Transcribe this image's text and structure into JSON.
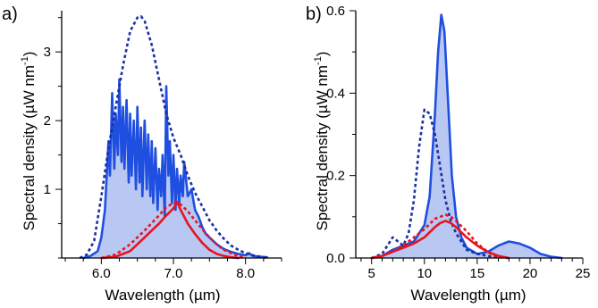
{
  "colors": {
    "blue": "#1f4fe0",
    "blue_dark": "#1a2fa3",
    "blue_fill": "#b9c7f3",
    "red": "#e8141c",
    "axis": "#000000"
  },
  "chart_data": [
    {
      "panel_label": "a)",
      "type": "line",
      "xlabel": "Wavelength (µm)",
      "ylabel": "Spectral density (µW nm",
      "ylabel_sup": "-1",
      "ylabel_close": ")",
      "xlim": [
        5.45,
        8.5
      ],
      "ylim": [
        0,
        3.6
      ],
      "x_ticks": [
        {
          "value": 6.0,
          "label": "6.0"
        },
        {
          "value": 7.0,
          "label": "7.0"
        },
        {
          "value": 8.0,
          "label": "8.0"
        }
      ],
      "x_minor_step": 0.25,
      "y_ticks": [
        {
          "value": 1,
          "label": "1"
        },
        {
          "value": 2,
          "label": "2"
        },
        {
          "value": 3,
          "label": "3"
        }
      ],
      "y_minor_step": 0.5,
      "grid": false,
      "series": [
        {
          "style": "solid-filled",
          "color_key": "blue",
          "x": [
            5.75,
            5.85,
            5.95,
            6.0,
            6.05,
            6.1,
            6.12,
            6.15,
            6.18,
            6.2,
            6.23,
            6.25,
            6.28,
            6.3,
            6.32,
            6.35,
            6.38,
            6.4,
            6.42,
            6.45,
            6.48,
            6.5,
            6.53,
            6.55,
            6.57,
            6.6,
            6.63,
            6.65,
            6.68,
            6.7,
            6.72,
            6.75,
            6.78,
            6.8,
            6.83,
            6.85,
            6.88,
            6.9,
            6.93,
            6.95,
            6.98,
            7.0,
            7.03,
            7.05,
            7.08,
            7.1,
            7.13,
            7.15,
            7.2,
            7.25,
            7.3,
            7.35,
            7.4,
            7.45,
            7.5,
            7.6,
            7.7,
            7.8,
            7.9,
            8.0,
            8.05,
            8.1,
            8.2,
            8.3
          ],
          "y": [
            0.0,
            0.03,
            0.1,
            0.3,
            0.7,
            1.7,
            1.2,
            2.4,
            1.3,
            2.1,
            1.5,
            2.6,
            1.4,
            2.2,
            1.3,
            2.3,
            1.1,
            2.1,
            1.2,
            2.0,
            1.0,
            2.2,
            1.1,
            1.9,
            0.9,
            2.0,
            1.0,
            1.8,
            0.9,
            1.7,
            0.8,
            1.6,
            0.7,
            1.3,
            0.9,
            1.5,
            0.6,
            2.5,
            1.2,
            1.7,
            0.8,
            1.5,
            0.7,
            1.3,
            0.8,
            1.2,
            0.9,
            1.4,
            0.9,
            1.0,
            0.7,
            0.6,
            0.45,
            0.35,
            0.3,
            0.2,
            0.13,
            0.09,
            0.06,
            0.04,
            0.07,
            0.03,
            0.02,
            0.01
          ]
        },
        {
          "style": "dotted",
          "color_key": "blue_dark",
          "x": [
            5.7,
            5.8,
            5.9,
            6.0,
            6.1,
            6.2,
            6.3,
            6.4,
            6.5,
            6.55,
            6.6,
            6.7,
            6.8,
            6.9,
            7.0,
            7.1,
            7.2,
            7.3,
            7.4,
            7.5,
            7.6,
            7.7,
            7.8,
            7.9,
            8.0,
            8.1,
            8.2,
            8.3
          ],
          "y": [
            0.0,
            0.05,
            0.25,
            0.9,
            1.6,
            2.2,
            2.8,
            3.3,
            3.5,
            3.52,
            3.45,
            3.1,
            2.6,
            2.1,
            1.75,
            1.5,
            1.2,
            0.95,
            0.75,
            0.55,
            0.4,
            0.28,
            0.18,
            0.12,
            0.07,
            0.04,
            0.02,
            0.0
          ]
        },
        {
          "style": "solid",
          "color_key": "red",
          "x": [
            6.0,
            6.2,
            6.4,
            6.5,
            6.6,
            6.7,
            6.8,
            6.9,
            7.0,
            7.05,
            7.1,
            7.2,
            7.3,
            7.4,
            7.5,
            7.6,
            7.7,
            7.8,
            7.9
          ],
          "y": [
            0.0,
            0.02,
            0.1,
            0.2,
            0.3,
            0.4,
            0.5,
            0.62,
            0.72,
            0.82,
            0.7,
            0.5,
            0.35,
            0.22,
            0.12,
            0.06,
            0.03,
            0.01,
            0.0
          ]
        },
        {
          "style": "dotted",
          "color_key": "red",
          "x": [
            6.0,
            6.2,
            6.4,
            6.6,
            6.8,
            6.9,
            7.0,
            7.1,
            7.2,
            7.3,
            7.4,
            7.5,
            7.6,
            7.7,
            7.8,
            7.9,
            8.0
          ],
          "y": [
            0.0,
            0.05,
            0.2,
            0.4,
            0.62,
            0.74,
            0.8,
            0.78,
            0.68,
            0.55,
            0.42,
            0.3,
            0.2,
            0.12,
            0.07,
            0.03,
            0.0
          ]
        }
      ]
    },
    {
      "panel_label": "b)",
      "type": "line",
      "xlabel": "Wavelength (µm)",
      "ylabel": "Spectral density (µW nm",
      "ylabel_sup": "-1",
      "ylabel_close": ")",
      "xlim": [
        3.5,
        25
      ],
      "ylim": [
        0,
        0.6
      ],
      "x_ticks": [
        {
          "value": 5,
          "label": "5"
        },
        {
          "value": 10,
          "label": "10"
        },
        {
          "value": 15,
          "label": "15"
        },
        {
          "value": 20,
          "label": "20"
        },
        {
          "value": 25,
          "label": "25"
        }
      ],
      "x_minor_step": 1,
      "y_ticks": [
        {
          "value": 0.0,
          "label": "0.0"
        },
        {
          "value": 0.2,
          "label": "0.2"
        },
        {
          "value": 0.4,
          "label": "0.4"
        },
        {
          "value": 0.6,
          "label": "0.6"
        }
      ],
      "y_minor_step": 0.1,
      "grid": false,
      "series": [
        {
          "style": "solid-filled",
          "color_key": "blue",
          "x": [
            5.0,
            6.0,
            7.0,
            8.0,
            9.0,
            10.0,
            10.5,
            11.0,
            11.3,
            11.6,
            11.9,
            12.2,
            12.6,
            13.0,
            13.5,
            14.0,
            15.0,
            16.0,
            17.0,
            18.0,
            19.0,
            20.0,
            21.0,
            22.0,
            23.0
          ],
          "y": [
            0.0,
            0.005,
            0.02,
            0.03,
            0.04,
            0.08,
            0.15,
            0.35,
            0.5,
            0.59,
            0.55,
            0.4,
            0.2,
            0.1,
            0.05,
            0.025,
            0.01,
            0.015,
            0.03,
            0.04,
            0.035,
            0.025,
            0.01,
            0.003,
            0.0
          ]
        },
        {
          "style": "dotted",
          "color_key": "blue_dark",
          "x": [
            5.0,
            6.0,
            6.5,
            7.0,
            7.5,
            8.0,
            8.5,
            9.0,
            9.5,
            10.0,
            10.5,
            11.0,
            11.5,
            12.0,
            12.5,
            13.0,
            13.5,
            14.0,
            15.0,
            16.0,
            17.0,
            18.0
          ],
          "y": [
            0.0,
            0.01,
            0.03,
            0.05,
            0.04,
            0.03,
            0.06,
            0.14,
            0.27,
            0.36,
            0.35,
            0.3,
            0.22,
            0.14,
            0.09,
            0.06,
            0.04,
            0.02,
            0.01,
            0.005,
            0.002,
            0.0
          ]
        },
        {
          "style": "solid",
          "color_key": "red",
          "x": [
            5.0,
            6.0,
            7.0,
            8.0,
            9.0,
            10.0,
            11.0,
            11.5,
            12.0,
            12.5,
            13.0,
            14.0,
            15.0,
            16.0,
            17.0,
            18.0
          ],
          "y": [
            0.0,
            0.005,
            0.015,
            0.025,
            0.035,
            0.05,
            0.075,
            0.085,
            0.09,
            0.085,
            0.075,
            0.05,
            0.03,
            0.015,
            0.005,
            0.0
          ]
        },
        {
          "style": "dotted",
          "color_key": "red",
          "x": [
            5.0,
            6.0,
            7.0,
            8.0,
            9.0,
            10.0,
            11.0,
            12.0,
            12.5,
            13.0,
            14.0,
            15.0,
            16.0,
            17.0
          ],
          "y": [
            0.0,
            0.005,
            0.015,
            0.03,
            0.05,
            0.07,
            0.095,
            0.105,
            0.1,
            0.09,
            0.065,
            0.035,
            0.015,
            0.0
          ]
        }
      ]
    }
  ]
}
